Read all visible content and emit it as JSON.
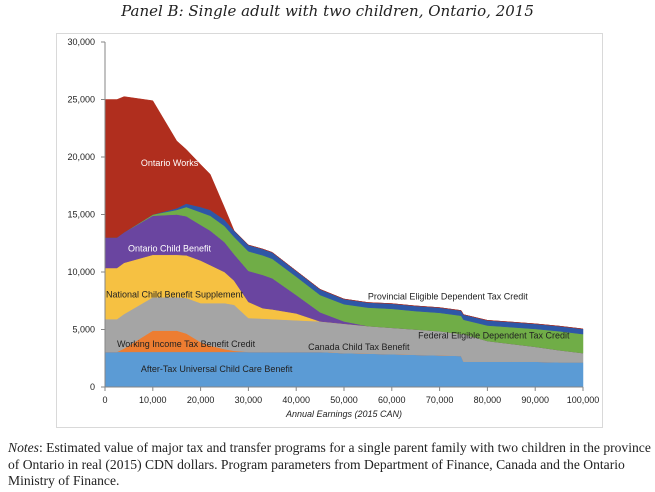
{
  "chart_data": {
    "type": "area",
    "stacked": true,
    "title": "Panel B: Single adult with two children, Ontario, 2015",
    "xlabel": "Annual Earnings (2015 CAN)",
    "ylabel": "",
    "xlim": [
      0,
      100000
    ],
    "ylim": [
      0,
      30000
    ],
    "xticks": [
      0,
      10000,
      20000,
      30000,
      40000,
      50000,
      60000,
      70000,
      80000,
      90000,
      100000
    ],
    "xtick_labels": [
      "0",
      "10,000",
      "20,000",
      "30,000",
      "40,000",
      "50,000",
      "60,000",
      "70,000",
      "80,000",
      "90,000",
      "100,000"
    ],
    "yticks": [
      0,
      5000,
      10000,
      15000,
      20000,
      25000,
      30000
    ],
    "ytick_labels": [
      "0",
      "5,000",
      "10,000",
      "15,000",
      "20,000",
      "25,000",
      "30,000"
    ],
    "grid": false,
    "legend": "inline labels",
    "x": [
      0,
      2500,
      4000,
      10000,
      15000,
      17000,
      20000,
      22000,
      25000,
      27000,
      30000,
      33000,
      35000,
      40000,
      45000,
      50000,
      55000,
      60000,
      65000,
      70000,
      74500,
      75000,
      80000,
      85000,
      90000,
      95000,
      100000
    ],
    "series": [
      {
        "name": "After-Tax Universal Child Care Benefit",
        "color": "#5b9bd5",
        "values": [
          3050,
          3050,
          3050,
          3050,
          3050,
          3050,
          3050,
          3050,
          3050,
          3050,
          3050,
          3050,
          3050,
          3050,
          3050,
          2950,
          2900,
          2850,
          2800,
          2750,
          2700,
          2200,
          2200,
          2200,
          2200,
          2150,
          2150
        ]
      },
      {
        "name": "Working Income Tax Benefit Credit",
        "color": "#ed7d31",
        "values": [
          0,
          0,
          300,
          1850,
          1850,
          1600,
          850,
          550,
          250,
          100,
          0,
          0,
          0,
          0,
          0,
          0,
          0,
          0,
          0,
          0,
          0,
          0,
          0,
          0,
          0,
          0,
          0
        ]
      },
      {
        "name": "Canada Child Tax Benefit",
        "color": "#a5a5a5",
        "values": [
          2850,
          2850,
          3000,
          2900,
          2900,
          3100,
          3400,
          3700,
          4000,
          4000,
          2950,
          2900,
          2850,
          2750,
          2650,
          2550,
          2400,
          2300,
          2200,
          2100,
          1900,
          2400,
          1800,
          1550,
          1300,
          1050,
          800
        ]
      },
      {
        "name": "National Child Benefit Supplement",
        "color": "#f6c142",
        "values": [
          4450,
          4450,
          4450,
          3700,
          3700,
          3700,
          3700,
          3300,
          2700,
          2100,
          1400,
          900,
          850,
          600,
          0,
          0,
          0,
          0,
          0,
          0,
          0,
          0,
          0,
          0,
          0,
          0,
          0
        ]
      },
      {
        "name": "Ontario Child Benefit",
        "color": "#6a45a0",
        "values": [
          2650,
          2650,
          2650,
          3400,
          3500,
          3400,
          3100,
          3000,
          2600,
          2300,
          2700,
          2900,
          2700,
          1600,
          800,
          200,
          0,
          0,
          0,
          0,
          0,
          0,
          0,
          0,
          0,
          0,
          0
        ]
      },
      {
        "name": "Federal Eligible Dependent Tax Credit",
        "color": "#70ad47",
        "values": [
          0,
          0,
          0,
          100,
          400,
          800,
          1100,
          1300,
          1400,
          1500,
          1700,
          1700,
          1700,
          1600,
          1500,
          1500,
          1600,
          1650,
          1600,
          1600,
          1600,
          1250,
          1350,
          1450,
          1550,
          1650,
          1650
        ]
      },
      {
        "name": "Provincial Eligible Dependent Tax Credit",
        "color": "#2e57a6",
        "values": [
          0,
          0,
          0,
          0,
          150,
          300,
          450,
          500,
          550,
          550,
          550,
          550,
          550,
          500,
          500,
          450,
          450,
          450,
          450,
          450,
          450,
          450,
          450,
          450,
          450,
          450,
          450
        ]
      },
      {
        "name": "Ontario Works",
        "color": "#b02e1e",
        "values": [
          12000,
          12000,
          11800,
          9900,
          5850,
          4700,
          3700,
          3100,
          1050,
          0,
          0,
          0,
          0,
          0,
          0,
          0,
          0,
          0,
          0,
          0,
          0,
          0,
          0,
          0,
          0,
          0,
          0
        ]
      }
    ],
    "annotations": [
      {
        "text": "Ontario Works",
        "x": 7500,
        "y": 19200,
        "color": "#ffffff"
      },
      {
        "text": "Ontario Child Benefit",
        "x": 4800,
        "y": 11800,
        "color": "#ffffff"
      },
      {
        "text": "National Child Benefit Supplement",
        "x": 200,
        "y": 7800,
        "color": "#222222"
      },
      {
        "text": "Working Income Tax Benefit Credit",
        "x": 2500,
        "y": 3500,
        "color": "#222222"
      },
      {
        "text": "After-Tax Universal Child Care Benefit",
        "x": 7500,
        "y": 1300,
        "color": "#222222"
      },
      {
        "text": "Canada Child Tax Benefit",
        "x": 42500,
        "y": 3200,
        "color": "#222222"
      },
      {
        "text": "Federal Eligible Dependent Tax Credit",
        "x": 65500,
        "y": 4200,
        "color": "#222222"
      },
      {
        "text": "Provincial Eligible Dependent Tax Credit",
        "x": 55000,
        "y": 7600,
        "color": "#222222"
      }
    ]
  },
  "notes": {
    "label": "Notes",
    "text": ": Estimated value of major tax and transfer programs for a single parent family with two children in the province of Ontario in real (2015) CDN dollars. Program parameters from Department of Finance, Canada and the Ontario Ministry of Finance."
  }
}
